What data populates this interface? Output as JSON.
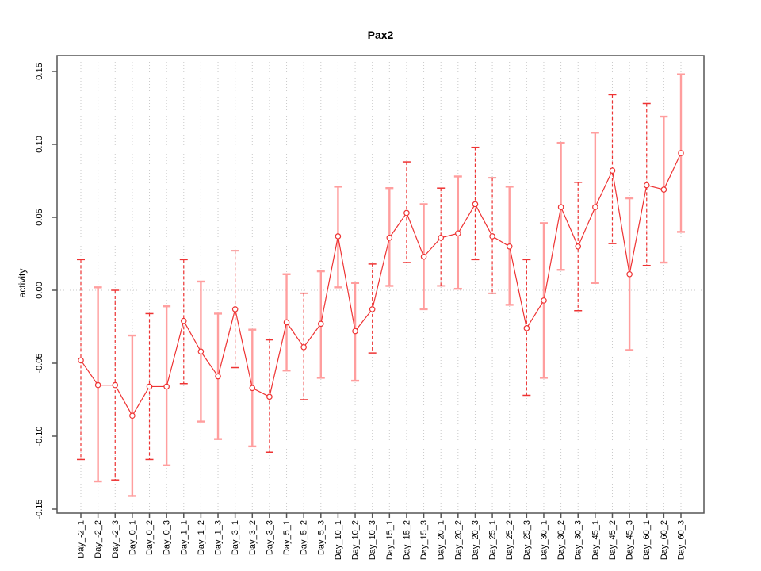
{
  "chart_data": {
    "type": "line",
    "title": "Pax2",
    "xlabel": "",
    "ylabel": "activity",
    "ylim": [
      -0.15,
      0.15
    ],
    "yticks": [
      -0.15,
      -0.1,
      -0.05,
      0.0,
      0.05,
      0.1,
      0.15
    ],
    "ytick_labels": [
      "-0.15",
      "-0.10",
      "-0.05",
      "0.00",
      "0.05",
      "0.10",
      "0.15"
    ],
    "grid": "vertical dotted line at every category; dotted horizontal line at y=0",
    "legend_position": "none",
    "marker": "open-circle",
    "categories": [
      "Day_-2_1",
      "Day_-2_2",
      "Day_-2_3",
      "Day_0_1",
      "Day_0_2",
      "Day_0_3",
      "Day_1_1",
      "Day_1_2",
      "Day_1_3",
      "Day_3_1",
      "Day_3_2",
      "Day_3_3",
      "Day_5_1",
      "Day_5_2",
      "Day_5_3",
      "Day_10_1",
      "Day_10_2",
      "Day_10_3",
      "Day_15_1",
      "Day_15_2",
      "Day_15_3",
      "Day_20_1",
      "Day_20_2",
      "Day_20_3",
      "Day_25_1",
      "Day_25_2",
      "Day_25_3",
      "Day_30_1",
      "Day_30_2",
      "Day_30_3",
      "Day_45_1",
      "Day_45_2",
      "Day_45_3",
      "Day_60_1",
      "Day_60_2",
      "Day_60_3"
    ],
    "series": [
      {
        "name": "activity",
        "values": [
          -0.048,
          -0.065,
          -0.065,
          -0.086,
          -0.066,
          -0.066,
          -0.021,
          -0.042,
          -0.059,
          -0.013,
          -0.067,
          -0.073,
          -0.022,
          -0.039,
          -0.023,
          0.037,
          -0.028,
          -0.013,
          0.036,
          0.053,
          0.023,
          0.036,
          0.039,
          0.059,
          0.037,
          0.03,
          -0.026,
          -0.007,
          0.057,
          0.03,
          0.057,
          0.082,
          0.011,
          0.072,
          0.069,
          0.094
        ],
        "error_high": [
          0.021,
          0.002,
          0.0,
          -0.031,
          -0.016,
          -0.011,
          0.021,
          0.006,
          -0.016,
          0.027,
          -0.027,
          -0.034,
          0.011,
          -0.002,
          0.013,
          0.071,
          0.005,
          0.018,
          0.07,
          0.088,
          0.059,
          0.07,
          0.078,
          0.098,
          0.077,
          0.071,
          0.021,
          0.046,
          0.101,
          0.074,
          0.108,
          0.134,
          0.063,
          0.128,
          0.119,
          0.148
        ],
        "error_low": [
          -0.116,
          -0.131,
          -0.13,
          -0.141,
          -0.116,
          -0.12,
          -0.064,
          -0.09,
          -0.102,
          -0.053,
          -0.107,
          -0.111,
          -0.055,
          -0.075,
          -0.06,
          0.002,
          -0.062,
          -0.043,
          0.003,
          0.019,
          -0.013,
          0.003,
          0.001,
          0.021,
          -0.002,
          -0.01,
          -0.072,
          -0.06,
          0.014,
          -0.014,
          0.005,
          0.032,
          -0.041,
          0.017,
          0.019,
          0.04
        ],
        "error_bar_styles": [
          "dashed",
          "solid",
          "dashed",
          "solid",
          "dashed",
          "solid",
          "dashed",
          "solid",
          "solid",
          "dashed",
          "solid",
          "dashed",
          "solid",
          "dashed",
          "solid",
          "solid",
          "solid",
          "dashed",
          "solid",
          "dashed",
          "solid",
          "dashed",
          "solid",
          "dashed",
          "dashed",
          "solid",
          "dashed",
          "solid",
          "solid",
          "dashed",
          "solid",
          "dashed",
          "solid",
          "dashed",
          "solid",
          "solid"
        ]
      }
    ],
    "colors": {
      "line": "#ee3333",
      "marker": "#ee3333",
      "error_bar_dashed": "#ee3333",
      "error_bar_light": "#ff9e9e",
      "grid": "#c9c9c9",
      "axis_box": "#555555",
      "text": "#000000",
      "background": "#ffffff"
    }
  }
}
